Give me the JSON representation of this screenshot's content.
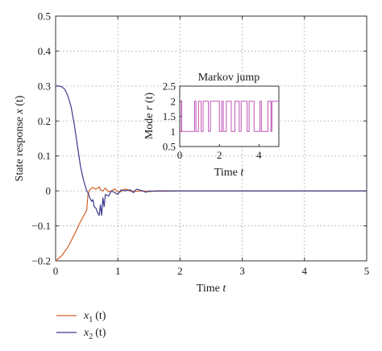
{
  "chart_data": [
    {
      "type": "line",
      "xlabel_text": "Time",
      "xlabel_var": "t",
      "ylabel_text": "State response",
      "ylabel_var": "x",
      "ylabel_arg": "(t)",
      "xlim": [
        0,
        5
      ],
      "ylim": [
        -0.2,
        0.5
      ],
      "xticks": [
        "0",
        "1",
        "2",
        "3",
        "4",
        "5"
      ],
      "yticks": [
        "0.5",
        "0.4",
        "0.3",
        "0.2",
        "0.1",
        "0",
        "−0.1",
        "−0.2"
      ],
      "grid": true,
      "legend_position": "below",
      "series": [
        {
          "name_var": "x",
          "name_sub": "1",
          "name_arg": "(t)",
          "color": "#d4622a",
          "x": [
            0,
            0.1,
            0.2,
            0.3,
            0.4,
            0.5,
            0.52,
            0.55,
            0.58,
            0.6,
            0.64,
            0.68,
            0.7,
            0.73,
            0.76,
            0.8,
            0.85,
            0.9,
            0.95,
            1.0,
            1.05,
            1.1,
            1.15,
            1.2,
            1.3,
            1.4,
            1.5,
            1.6,
            1.8,
            2.0,
            2.5,
            3,
            4,
            5
          ],
          "y": [
            -0.2,
            -0.185,
            -0.16,
            -0.125,
            -0.088,
            -0.055,
            -0.01,
            0.003,
            0.008,
            0.01,
            0.005,
            0.008,
            0.012,
            0.002,
            0.0,
            0.008,
            -0.002,
            0.0,
            0.006,
            -0.003,
            -0.002,
            0.005,
            0.004,
            -0.001,
            -0.001,
            0.0,
            -0.002,
            -0.001,
            -0.001,
            0.0,
            0.0,
            0.0,
            0.0,
            0.0
          ]
        },
        {
          "name_var": "x",
          "name_sub": "2",
          "name_arg": "(t)",
          "color": "#3a3a8c",
          "x": [
            0,
            0.05,
            0.1,
            0.15,
            0.2,
            0.25,
            0.3,
            0.35,
            0.4,
            0.45,
            0.5,
            0.52,
            0.55,
            0.58,
            0.6,
            0.62,
            0.65,
            0.67,
            0.7,
            0.72,
            0.74,
            0.76,
            0.78,
            0.8,
            0.85,
            0.88,
            0.9,
            1.0,
            1.05,
            1.1,
            1.2,
            1.25,
            1.3,
            1.4,
            1.45,
            1.5,
            1.55,
            1.6,
            1.8,
            2.0,
            2.5,
            3,
            4,
            5
          ],
          "y": [
            0.3,
            0.3,
            0.298,
            0.29,
            0.27,
            0.24,
            0.19,
            0.13,
            0.07,
            0.03,
            0.0,
            -0.005,
            -0.02,
            -0.03,
            -0.025,
            -0.045,
            -0.05,
            -0.06,
            -0.07,
            -0.04,
            -0.07,
            -0.02,
            -0.045,
            -0.01,
            -0.015,
            -0.005,
            0.0,
            -0.01,
            0.003,
            0.0,
            0.003,
            -0.005,
            0.005,
            0.0,
            -0.004,
            0.0,
            -0.001,
            0.0,
            0.0,
            0.0,
            0.0,
            0.0,
            0.0,
            0.0
          ]
        }
      ]
    },
    {
      "type": "line",
      "title": "Markov jump",
      "xlabel_text": "Time",
      "xlabel_var": "t",
      "ylabel_text": "Mode",
      "ylabel_var": "r",
      "ylabel_arg": "(t)",
      "xlim": [
        0,
        5
      ],
      "ylim": [
        0.5,
        2.5
      ],
      "xticks": [
        "0",
        "2",
        "4"
      ],
      "yticks": [
        "2.5",
        "2",
        "1.5",
        "1",
        "0.5"
      ],
      "series": [
        {
          "color": "#c055b8",
          "x": [
            0,
            0.08,
            0.1,
            0.22,
            0.3,
            0.65,
            0.75,
            0.82,
            0.95,
            1.02,
            1.08,
            1.18,
            1.25,
            1.4,
            1.45,
            1.55,
            1.62,
            1.75,
            2.0,
            2.12,
            2.2,
            2.3,
            2.35,
            2.52,
            2.6,
            2.78,
            2.85,
            3.0,
            3.1,
            3.32,
            3.4,
            3.5,
            3.62,
            3.75,
            3.85,
            4.05,
            4.12,
            4.38,
            4.45,
            4.6,
            4.65,
            5.0
          ],
          "y": [
            1,
            2,
            1,
            1,
            1,
            1,
            2,
            1,
            2,
            2,
            1,
            2,
            2,
            2,
            1,
            2,
            2,
            2,
            1,
            2,
            1,
            1,
            2,
            2,
            1,
            2,
            2,
            1,
            2,
            2,
            1,
            2,
            2,
            1,
            1,
            2,
            1,
            1,
            2,
            1,
            2,
            2
          ]
        }
      ]
    }
  ]
}
